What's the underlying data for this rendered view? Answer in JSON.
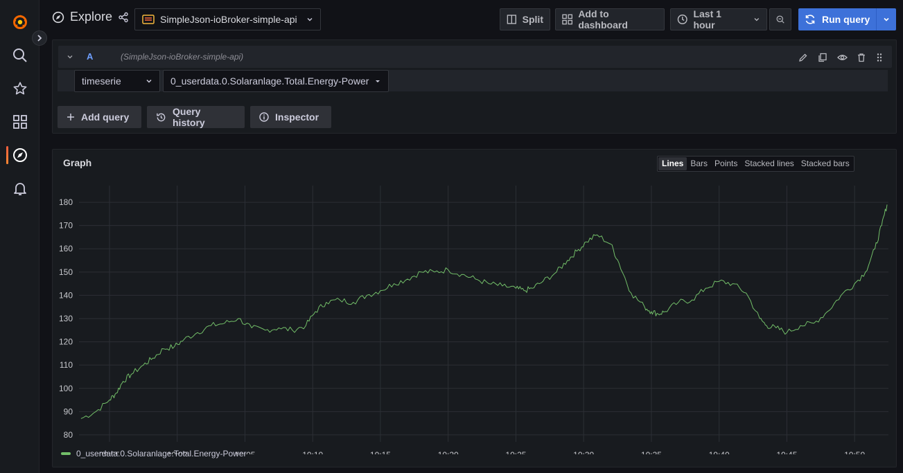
{
  "app": {
    "title": "Explore",
    "datasource": "SimpleJson-ioBroker-simple-api"
  },
  "toolbar": {
    "split_label": "Split",
    "add_dashboard_label": "Add to dashboard",
    "time_range_label": "Last 1 hour",
    "run_query_label": "Run query"
  },
  "query": {
    "refid": "A",
    "datasource_hint": "(SimpleJson-ioBroker-simple-api)",
    "type_value": "timeserie",
    "metric_value": "0_userdata.0.Solaranlage.Total.Energy-Power"
  },
  "actions": {
    "add_query": "Add query",
    "query_history": "Query history",
    "inspector": "Inspector"
  },
  "graph": {
    "title": "Graph",
    "render_options": [
      "Lines",
      "Bars",
      "Points",
      "Stacked lines",
      "Stacked bars"
    ],
    "selected_option": "Lines"
  },
  "colors": {
    "series": "#73bf69",
    "accent": "#3d71d9",
    "active_nav": "#f55f3e"
  },
  "chart_data": {
    "type": "line",
    "title": "",
    "xlabel": "",
    "ylabel": "",
    "ylim": [
      77,
      183
    ],
    "y_ticks": [
      80,
      90,
      100,
      110,
      120,
      130,
      140,
      150,
      160,
      170,
      180
    ],
    "x_ticks": [
      "09:55",
      "10:00",
      "10:05",
      "10:10",
      "10:15",
      "10:20",
      "10:25",
      "10:30",
      "10:35",
      "10:40",
      "10:45",
      "10:50"
    ],
    "x_tick_minutes": [
      0,
      5,
      10,
      15,
      20,
      25,
      30,
      35,
      40,
      45,
      50,
      55
    ],
    "xlim_minutes": [
      -2.25,
      57.5
    ],
    "grid": true,
    "series": [
      {
        "name": "0_userdata.0.Solaranlage.Total.Energy-Power",
        "x_minutes": [
          -2.1,
          -1.0,
          0.0,
          0.5,
          1.0,
          1.6,
          2.5,
          3.2,
          4.0,
          4.8,
          5.5,
          6.5,
          7.5,
          8.5,
          9.5,
          10.5,
          11.5,
          12.5,
          13.5,
          14.5,
          15.2,
          16.0,
          17.0,
          18.0,
          19.0,
          20.0,
          21.0,
          22.0,
          23.0,
          24.0,
          25.0,
          26.0,
          27.0,
          28.0,
          29.0,
          30.0,
          30.6,
          31.2,
          32.0,
          33.0,
          33.8,
          34.5,
          35.2,
          36.0,
          37.0,
          37.6,
          38.5,
          39.5,
          40.0,
          40.5,
          41.0,
          42.0,
          43.0,
          44.0,
          45.0,
          46.0,
          47.0,
          48.0,
          48.5,
          49.2,
          50.0,
          51.0,
          52.0,
          53.0,
          54.0,
          55.0,
          55.8,
          56.5,
          57.0,
          57.4
        ],
        "values": [
          87,
          90,
          95,
          98,
          103,
          106,
          110,
          113,
          117,
          118,
          121,
          124,
          127,
          128,
          130,
          126,
          125,
          126,
          125,
          127,
          133,
          137,
          138,
          137,
          140,
          142,
          145,
          147,
          150,
          150,
          151,
          149,
          147,
          145,
          144,
          143,
          142,
          143,
          146,
          150,
          155,
          159,
          163,
          166,
          162,
          154,
          141,
          135,
          133,
          132,
          133,
          137,
          138,
          143,
          146,
          145,
          141,
          130,
          127,
          126,
          124,
          127,
          128,
          133,
          140,
          145,
          150,
          160,
          170,
          179
        ]
      }
    ]
  }
}
